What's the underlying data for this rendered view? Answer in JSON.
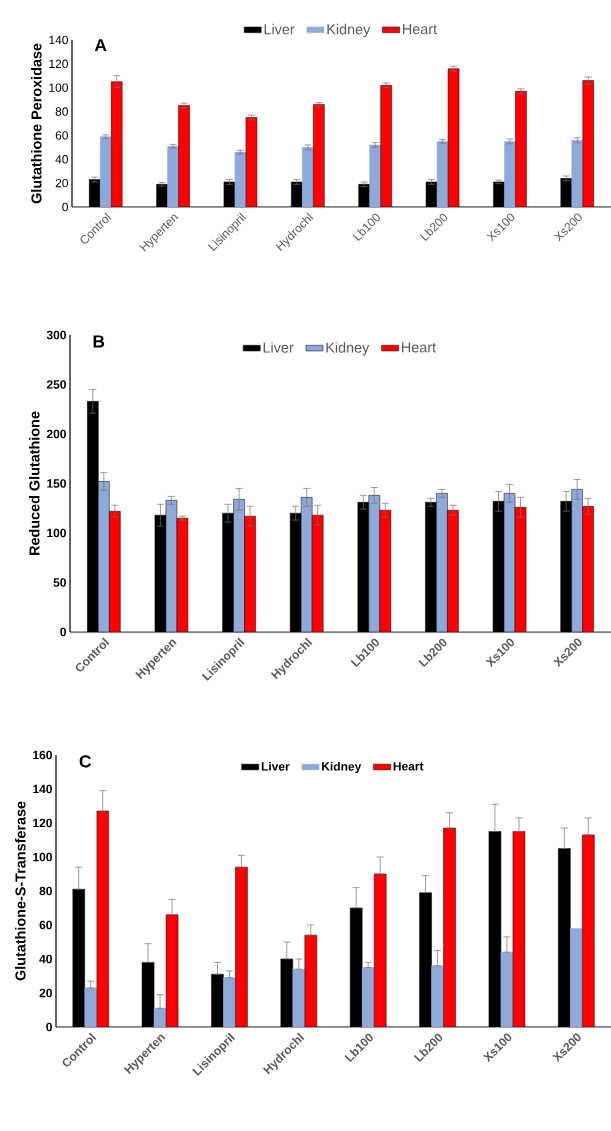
{
  "chart_data": [
    {
      "type": "bar",
      "title": "A",
      "ylabel": "Glutathione Peroxidase",
      "categories": [
        "Control",
        "Hyperten",
        "Lisinopril",
        "Hydrochl",
        "Lb100",
        "Lb200",
        "Xs100",
        "Xs200"
      ],
      "series": [
        {
          "name": "Liver",
          "color": "#000000",
          "values": [
            23,
            19,
            21,
            21,
            19,
            21,
            21,
            24
          ],
          "errors": [
            2,
            1.5,
            2,
            2,
            2,
            2,
            1.5,
            2
          ]
        },
        {
          "name": "Kidney",
          "color": "#8eaadb",
          "values": [
            59,
            51,
            46,
            50,
            52,
            55,
            55,
            56
          ],
          "errors": [
            1.5,
            1.5,
            1.5,
            2,
            2,
            1.5,
            2,
            2
          ]
        },
        {
          "name": "Heart",
          "color": "#ff0000",
          "values": [
            105,
            85,
            75,
            86,
            102,
            116,
            97,
            106
          ],
          "errors": [
            5,
            2,
            2,
            1.5,
            2,
            2,
            2,
            3
          ]
        }
      ],
      "ylim": [
        0,
        140
      ],
      "yticks": [
        0,
        20,
        40,
        60,
        80,
        100,
        120,
        140
      ],
      "legend": "top"
    },
    {
      "type": "bar",
      "title": "B",
      "ylabel": "Reduced Glutathione",
      "categories": [
        "Control",
        "Hyperten",
        "Lisinopril",
        "Hydrochl",
        "Lb100",
        "Lb200",
        "Xs100",
        "Xs200"
      ],
      "series": [
        {
          "name": "Liver",
          "color": "#000000",
          "values": [
            233,
            118,
            120,
            120,
            131,
            131,
            132,
            132
          ],
          "errors": [
            12,
            11,
            9,
            7,
            7,
            4,
            10,
            10
          ]
        },
        {
          "name": "Kidney",
          "color": "#8eaadb",
          "values": [
            152,
            133,
            134,
            136,
            138,
            140,
            140,
            144
          ],
          "errors": [
            9,
            4,
            11,
            9,
            8,
            4,
            9,
            10
          ]
        },
        {
          "name": "Heart",
          "color": "#ff0000",
          "values": [
            122,
            115,
            117,
            118,
            123,
            123,
            126,
            127
          ],
          "errors": [
            6,
            2,
            10,
            10,
            7,
            5,
            10,
            8
          ]
        }
      ],
      "ylim": [
        0,
        300
      ],
      "yticks": [
        0,
        50,
        100,
        150,
        200,
        250,
        300
      ],
      "legend": "top"
    },
    {
      "type": "bar",
      "title": "C",
      "ylabel": "Glutathione-S-Transferase",
      "categories": [
        "Control",
        "Hyperten",
        "Lisinopril",
        "Hydrochl",
        "Lb100",
        "Lb200",
        "Xs100",
        "Xs200"
      ],
      "series": [
        {
          "name": "Liver",
          "color": "#000000",
          "values": [
            81,
            38,
            31,
            40,
            70,
            79,
            115,
            105
          ],
          "errors": [
            [
              81,
              94
            ],
            [
              38,
              49
            ],
            [
              31,
              38
            ],
            [
              40,
              50
            ],
            [
              70,
              82
            ],
            [
              79,
              89
            ],
            [
              115,
              131
            ],
            [
              105,
              117
            ]
          ]
        },
        {
          "name": "Kidney",
          "color": "#8eaadb",
          "values": [
            23,
            11,
            29,
            34,
            35,
            36,
            44,
            58
          ],
          "errors": [
            [
              23,
              27
            ],
            [
              11,
              19
            ],
            [
              29,
              33
            ],
            [
              34,
              40
            ],
            [
              35,
              38
            ],
            [
              36,
              45
            ],
            [
              44,
              53
            ],
            null
          ]
        },
        {
          "name": "Heart",
          "color": "#ff0000",
          "values": [
            127,
            66,
            94,
            54,
            90,
            117,
            115,
            113
          ],
          "errors": [
            [
              127,
              139
            ],
            [
              66,
              75
            ],
            [
              94,
              101
            ],
            [
              54,
              60
            ],
            [
              90,
              100
            ],
            [
              117,
              126
            ],
            [
              115,
              123
            ],
            [
              113,
              123
            ]
          ]
        }
      ],
      "ylim": [
        0,
        160
      ],
      "yticks": [
        0,
        20,
        40,
        60,
        80,
        100,
        120,
        140,
        160
      ],
      "legend": "top"
    }
  ]
}
